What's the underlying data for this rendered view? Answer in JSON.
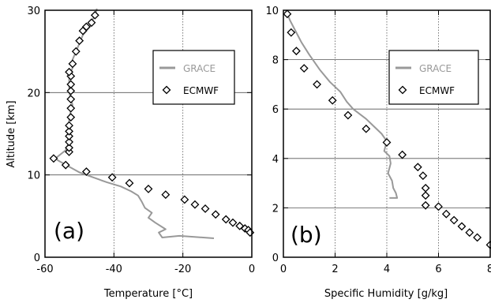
{
  "colors": {
    "grace": "#999999",
    "ecmwf": "#000000",
    "gridline": "#555555"
  },
  "chart_data": [
    {
      "type": "line",
      "panel_label": "(a)",
      "xlabel": "Temperature [°C]",
      "ylabel": "Altitude [km]",
      "xlim": [
        -60,
        0
      ],
      "ylim": [
        0,
        30
      ],
      "xticks": [
        "-60",
        "-40",
        "-20",
        "0"
      ],
      "xtick_values": [
        -60,
        -40,
        -20,
        0
      ],
      "yticks": [
        "0",
        "10",
        "20",
        "30"
      ],
      "ytick_values": [
        0,
        10,
        20,
        30
      ],
      "grid": true,
      "legend_position": "top-right",
      "series": [
        {
          "name": "GRACE",
          "style": "line",
          "x": [
            -11,
            -21,
            -26,
            -27,
            -25,
            -28,
            -30,
            -29,
            -31,
            -32,
            -33,
            -35,
            -38,
            -42,
            -46,
            -50,
            -53,
            -56,
            -57,
            -54,
            -53,
            -53,
            -53,
            -52,
            -53,
            -53,
            -53,
            -52,
            -52,
            -51,
            -50,
            -49,
            -47,
            -46,
            -45,
            -45
          ],
          "y": [
            2.3,
            2.6,
            2.4,
            3.0,
            3.4,
            4.2,
            4.8,
            5.4,
            6.0,
            6.8,
            7.5,
            8.0,
            8.6,
            9.1,
            9.7,
            10.3,
            11.0,
            11.7,
            12.0,
            13.0,
            14.0,
            15.5,
            17.0,
            18.5,
            20.0,
            21.0,
            22.0,
            23.0,
            24.0,
            25.0,
            26.0,
            27.0,
            28.0,
            29.0,
            30.0,
            30.2
          ]
        },
        {
          "name": "ECMWF",
          "style": "diamond",
          "x": [
            -57.5,
            -54,
            -48,
            -40.5,
            -35.5,
            -30,
            -25,
            -19.5,
            -16.5,
            -13.5,
            -10.5,
            -7.5,
            -5.5,
            -3.5,
            -2,
            -1,
            -0.5,
            -53,
            -53,
            -53,
            -53,
            -53,
            -53,
            -52.5,
            -52.5,
            -52.5,
            -52.5,
            -52.5,
            -52.5,
            -53,
            -52,
            -51,
            -50,
            -49,
            -48,
            -46.5,
            -45.5
          ],
          "y": [
            12.0,
            11.2,
            10.4,
            9.7,
            9.0,
            8.3,
            7.6,
            7.0,
            6.4,
            5.9,
            5.2,
            4.6,
            4.2,
            3.8,
            3.5,
            3.3,
            3.0,
            12.8,
            13.3,
            14.0,
            14.7,
            15.3,
            16.0,
            17.0,
            18.1,
            19.2,
            20.2,
            21.0,
            22.0,
            22.5,
            23.5,
            25.0,
            26.3,
            27.5,
            28.0,
            28.5,
            29.4
          ]
        }
      ]
    },
    {
      "type": "line",
      "panel_label": "(b)",
      "xlabel": "Specific Humidity [g/kg]",
      "ylabel": "",
      "xlim": [
        0,
        8
      ],
      "ylim": [
        0,
        10
      ],
      "xticks": [
        "0",
        "2",
        "4",
        "6",
        "8"
      ],
      "xtick_values": [
        0,
        2,
        4,
        6,
        8
      ],
      "yticks": [
        "0",
        "2",
        "4",
        "6",
        "8",
        "10"
      ],
      "ytick_values": [
        0,
        2,
        4,
        6,
        8,
        10
      ],
      "grid": true,
      "legend_position": "top-right",
      "series": [
        {
          "name": "GRACE",
          "style": "line",
          "x": [
            0.1,
            0.25,
            0.45,
            0.7,
            1.0,
            1.4,
            1.8,
            2.2,
            2.45,
            2.7,
            3.2,
            3.5,
            3.8,
            4.0,
            3.9,
            4.1,
            4.15,
            4.05,
            4.2,
            4.25,
            4.35,
            4.4,
            4.1
          ],
          "y": [
            10.0,
            9.6,
            9.2,
            8.7,
            8.2,
            7.6,
            7.1,
            6.7,
            6.3,
            6.0,
            5.6,
            5.3,
            5.0,
            4.7,
            4.3,
            4.1,
            3.8,
            3.4,
            3.1,
            2.8,
            2.6,
            2.4,
            2.4
          ]
        },
        {
          "name": "ECMWF",
          "style": "diamond",
          "x": [
            0.15,
            0.3,
            0.5,
            0.8,
            1.3,
            1.9,
            2.5,
            3.2,
            4.0,
            4.6,
            5.2,
            5.4,
            5.5,
            5.5,
            5.5,
            6.0,
            6.3,
            6.6,
            6.9,
            7.2,
            7.5,
            8.0
          ],
          "y": [
            9.85,
            9.1,
            8.35,
            7.65,
            7.0,
            6.35,
            5.75,
            5.2,
            4.65,
            4.15,
            3.65,
            3.3,
            2.8,
            2.5,
            2.1,
            2.05,
            1.75,
            1.5,
            1.25,
            1.0,
            0.8,
            0.5
          ]
        }
      ]
    }
  ]
}
